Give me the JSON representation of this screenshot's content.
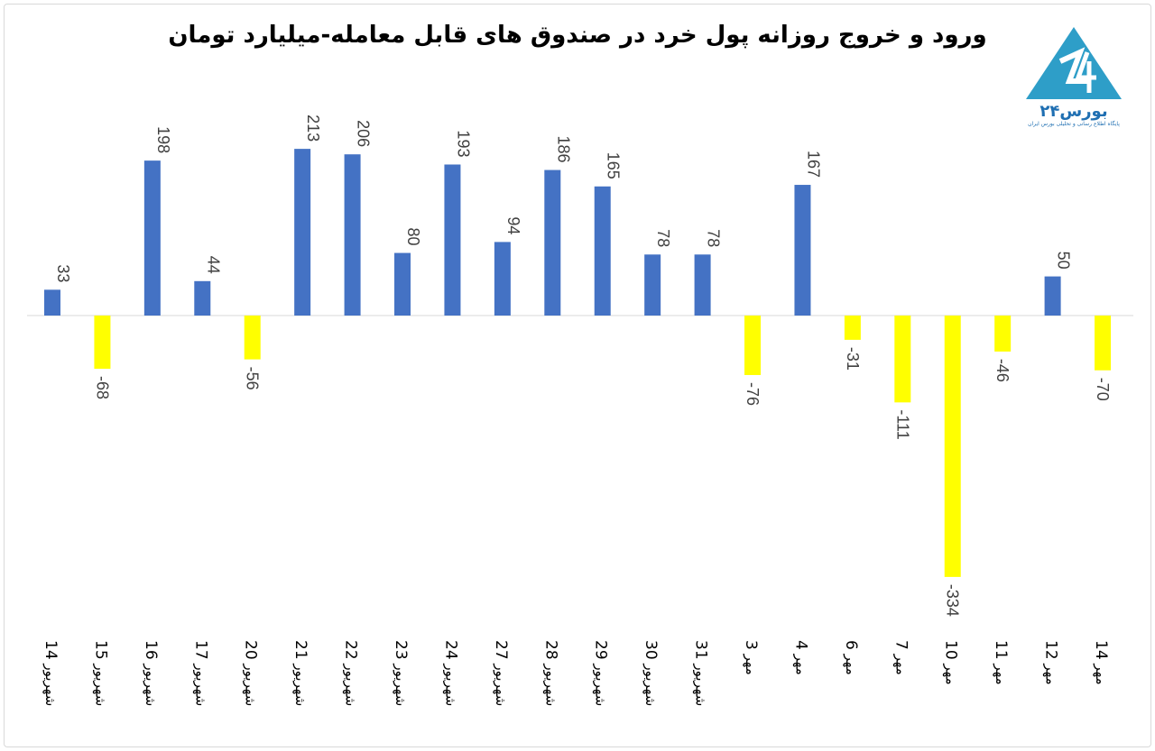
{
  "chart_data": {
    "type": "bar",
    "title": "ورود و خروج روزانه پول خرد در صندوق های قابل معامله-میلیارد تومان",
    "xlabel": "",
    "ylabel": "",
    "ylim": [
      -334,
      213
    ],
    "grid": false,
    "categories": [
      "14 شهریور",
      "15 شهریور",
      "16 شهریور",
      "17 شهریور",
      "20 شهریور",
      "21 شهریور",
      "22 شهریور",
      "23 شهریور",
      "24 شهریور",
      "27 شهریور",
      "28 شهریور",
      "29 شهریور",
      "30 شهریور",
      "31 شهریور",
      "3 مهر",
      "4 مهر",
      "6 مهر",
      "7 مهر",
      "10 مهر",
      "11 مهر",
      "12 مهر",
      "14 مهر"
    ],
    "values": [
      33,
      -68,
      198,
      44,
      -56,
      213,
      206,
      80,
      193,
      94,
      186,
      165,
      78,
      78,
      -76,
      167,
      -31,
      -111,
      -334,
      -46,
      50,
      -70
    ],
    "colors": {
      "positive": "#4472c4",
      "negative": "#ffff00"
    }
  },
  "logo": {
    "name": "بورس۲۴",
    "tagline": "پایگاه اطلاع رسانی و تحلیلی بورس ایران",
    "color": "#2e9ec8"
  }
}
